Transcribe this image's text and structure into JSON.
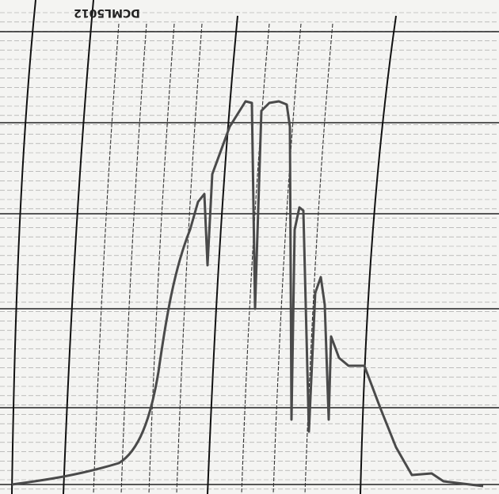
{
  "label": "DCML5012"
}
